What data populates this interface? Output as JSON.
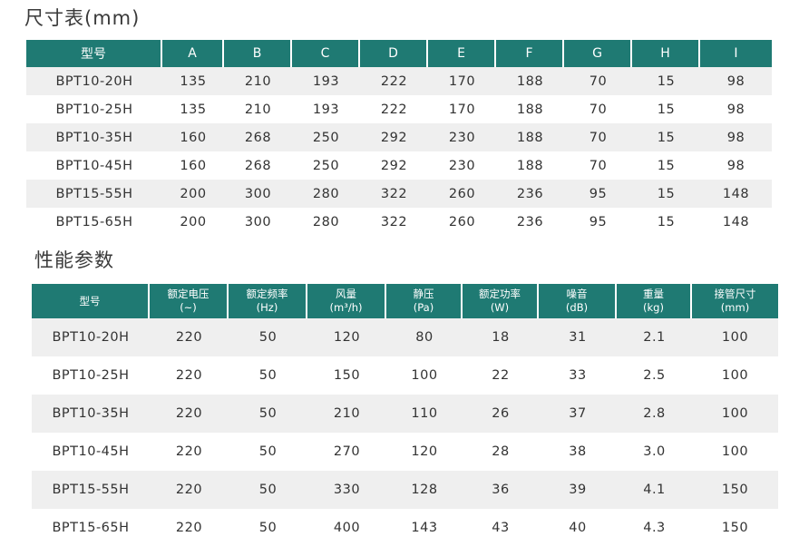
{
  "dimension_section": {
    "title": "尺寸表(mm)",
    "headers": [
      "型号",
      "A",
      "B",
      "C",
      "D",
      "E",
      "F",
      "G",
      "H",
      "I"
    ],
    "rows": [
      [
        "BPT10-20H",
        "135",
        "210",
        "193",
        "222",
        "170",
        "188",
        "70",
        "15",
        "98"
      ],
      [
        "BPT10-25H",
        "135",
        "210",
        "193",
        "222",
        "170",
        "188",
        "70",
        "15",
        "98"
      ],
      [
        "BPT10-35H",
        "160",
        "268",
        "250",
        "292",
        "230",
        "188",
        "70",
        "15",
        "98"
      ],
      [
        "BPT10-45H",
        "160",
        "268",
        "250",
        "292",
        "230",
        "188",
        "70",
        "15",
        "98"
      ],
      [
        "BPT15-55H",
        "200",
        "300",
        "280",
        "322",
        "260",
        "236",
        "95",
        "15",
        "148"
      ],
      [
        "BPT15-65H",
        "200",
        "300",
        "280",
        "322",
        "260",
        "236",
        "95",
        "15",
        "148"
      ]
    ]
  },
  "performance_section": {
    "title": "性能参数",
    "headers": [
      {
        "label": "型号",
        "unit": ""
      },
      {
        "label": "额定电压",
        "unit": "(~)"
      },
      {
        "label": "额定频率",
        "unit": "(Hz)"
      },
      {
        "label": "风量",
        "unit": "(m³/h)"
      },
      {
        "label": "静压",
        "unit": "(Pa)"
      },
      {
        "label": "额定功率",
        "unit": "(W)"
      },
      {
        "label": "噪音",
        "unit": "(dB)"
      },
      {
        "label": "重量",
        "unit": "(kg)"
      },
      {
        "label": "接管尺寸",
        "unit": "(mm)"
      }
    ],
    "rows": [
      [
        "BPT10-20H",
        "220",
        "50",
        "120",
        "80",
        "18",
        "31",
        "2.1",
        "100"
      ],
      [
        "BPT10-25H",
        "220",
        "50",
        "150",
        "100",
        "22",
        "33",
        "2.5",
        "100"
      ],
      [
        "BPT10-35H",
        "220",
        "50",
        "210",
        "110",
        "26",
        "37",
        "2.8",
        "100"
      ],
      [
        "BPT10-45H",
        "220",
        "50",
        "270",
        "120",
        "28",
        "38",
        "3.0",
        "100"
      ],
      [
        "BPT15-55H",
        "220",
        "50",
        "330",
        "128",
        "36",
        "39",
        "4.1",
        "150"
      ],
      [
        "BPT15-65H",
        "220",
        "50",
        "400",
        "143",
        "43",
        "40",
        "4.3",
        "150"
      ]
    ]
  },
  "colors": {
    "header_bg": "#1f7a73",
    "header_text": "#ffffff",
    "row_shade": "#efefef"
  }
}
